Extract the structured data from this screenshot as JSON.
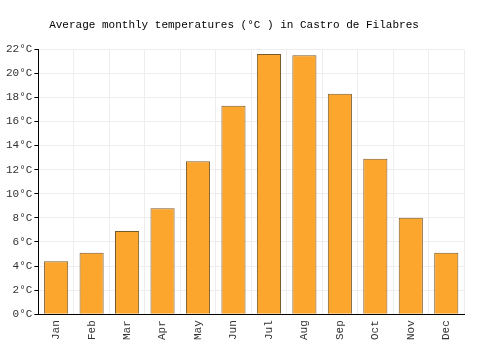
{
  "chart_data": {
    "type": "bar",
    "title": "Average monthly temperatures (°C ) in Castro de Filabres",
    "categories": [
      "Jan",
      "Feb",
      "Mar",
      "Apr",
      "May",
      "Jun",
      "Jul",
      "Aug",
      "Sep",
      "Oct",
      "Nov",
      "Dec"
    ],
    "values": [
      4.4,
      5.1,
      6.9,
      8.8,
      12.7,
      17.3,
      21.6,
      21.5,
      18.3,
      12.9,
      8.0,
      5.1
    ],
    "color": "#fda62e",
    "ylim": [
      0,
      22
    ],
    "yticks": [
      {
        "value": 0,
        "label": "0°C"
      },
      {
        "value": 2,
        "label": "2°C"
      },
      {
        "value": 4,
        "label": "4°C"
      },
      {
        "value": 6,
        "label": "6°C"
      },
      {
        "value": 8,
        "label": "8°C"
      },
      {
        "value": 10,
        "label": "10°C"
      },
      {
        "value": 12,
        "label": "12°C"
      },
      {
        "value": 14,
        "label": "14°C"
      },
      {
        "value": 16,
        "label": "16°C"
      },
      {
        "value": 18,
        "label": "18°C"
      },
      {
        "value": 20,
        "label": "20°C"
      },
      {
        "value": 22,
        "label": "22°C"
      }
    ],
    "grid": true
  }
}
